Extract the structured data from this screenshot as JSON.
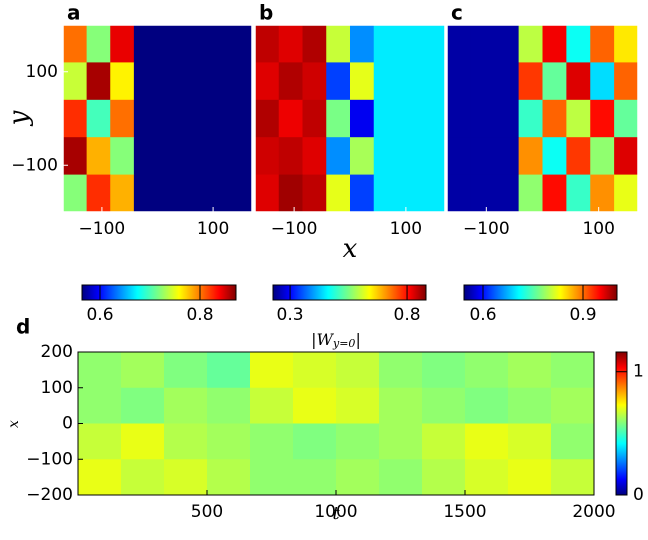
{
  "chart_data": [
    {
      "type": "heatmap",
      "panel_label": "a",
      "colormap": "jet",
      "ylabel": "y",
      "xlim": [
        -170,
        170
      ],
      "ylim": [
        -200,
        200
      ],
      "xticks": [
        {
          "value": -100,
          "label": "−100"
        },
        100
      ],
      "yticks": [
        100,
        {
          "value": -100,
          "label": "−100"
        }
      ],
      "clim": [
        0.564,
        0.872
      ],
      "cbar_ticks": [
        0.6,
        0.8
      ],
      "z": [
        [
          0.8,
          0.72,
          0.84,
          0.56,
          0.56,
          0.56,
          0.56,
          0.56
        ],
        [
          0.74,
          0.86,
          0.76,
          0.56,
          0.56,
          0.56,
          0.56,
          0.56
        ],
        [
          0.82,
          0.7,
          0.8,
          0.56,
          0.56,
          0.56,
          0.56,
          0.56
        ],
        [
          0.86,
          0.78,
          0.72,
          0.56,
          0.56,
          0.56,
          0.56,
          0.56
        ],
        [
          0.72,
          0.82,
          0.78,
          0.56,
          0.56,
          0.56,
          0.56,
          0.56
        ]
      ]
    },
    {
      "type": "heatmap",
      "panel_label": "b",
      "colormap": "jet",
      "xlabel": "x",
      "xlim": [
        -170,
        170
      ],
      "ylim": [
        -200,
        200
      ],
      "xticks": [
        {
          "value": -100,
          "label": "−100"
        },
        100
      ],
      "clim": [
        0.227,
        0.881
      ],
      "cbar_ticks": [
        0.3,
        0.8
      ],
      "z": [
        [
          0.84,
          0.82,
          0.85,
          0.6,
          0.4,
          0.46,
          0.46,
          0.46
        ],
        [
          0.82,
          0.85,
          0.83,
          0.35,
          0.62,
          0.46,
          0.46,
          0.46
        ],
        [
          0.85,
          0.81,
          0.84,
          0.55,
          0.3,
          0.46,
          0.46,
          0.46
        ],
        [
          0.83,
          0.84,
          0.82,
          0.4,
          0.58,
          0.46,
          0.46,
          0.46
        ],
        [
          0.82,
          0.86,
          0.84,
          0.62,
          0.35,
          0.46,
          0.46,
          0.46
        ]
      ]
    },
    {
      "type": "heatmap",
      "panel_label": "c",
      "colormap": "jet",
      "xlim": [
        -170,
        170
      ],
      "ylim": [
        -200,
        200
      ],
      "xticks": [
        {
          "value": -100,
          "label": "−100"
        },
        100
      ],
      "clim": [
        0.543,
        1.002
      ],
      "cbar_ticks": [
        0.6,
        0.9
      ],
      "z": [
        [
          0.56,
          0.56,
          0.56,
          0.8,
          0.95,
          0.72,
          0.9,
          0.84
        ],
        [
          0.56,
          0.56,
          0.56,
          0.92,
          0.76,
          0.96,
          0.7,
          0.9
        ],
        [
          0.56,
          0.56,
          0.56,
          0.74,
          0.9,
          0.8,
          0.94,
          0.76
        ],
        [
          0.56,
          0.56,
          0.56,
          0.88,
          0.72,
          0.92,
          0.78,
          0.96
        ],
        [
          0.56,
          0.56,
          0.56,
          0.78,
          0.94,
          0.74,
          0.88,
          0.82
        ]
      ]
    },
    {
      "type": "heatmap",
      "panel_label": "d",
      "colormap": "jet",
      "title": "|W_{y=0}|",
      "xlabel": "t",
      "ylabel": "x",
      "xlim": [
        0,
        2000
      ],
      "ylim": [
        -200,
        200
      ],
      "xticks": [
        500,
        1000,
        1500,
        2000
      ],
      "yticks": [
        200,
        100,
        0,
        {
          "value": -100,
          "label": "−100"
        },
        {
          "value": -200,
          "label": "−200"
        }
      ],
      "clim": [
        0,
        1.16
      ],
      "cbar_ticks": [
        1,
        0
      ],
      "z": [
        [
          0.6,
          0.62,
          0.58,
          0.55,
          0.7,
          0.68,
          0.66,
          0.6,
          0.58,
          0.6,
          0.62,
          0.6
        ],
        [
          0.6,
          0.58,
          0.62,
          0.6,
          0.66,
          0.7,
          0.68,
          0.62,
          0.6,
          0.58,
          0.6,
          0.62
        ],
        [
          0.66,
          0.7,
          0.64,
          0.62,
          0.6,
          0.58,
          0.6,
          0.62,
          0.66,
          0.7,
          0.68,
          0.6
        ],
        [
          0.7,
          0.66,
          0.68,
          0.64,
          0.6,
          0.6,
          0.62,
          0.6,
          0.64,
          0.68,
          0.7,
          0.66
        ]
      ]
    }
  ]
}
